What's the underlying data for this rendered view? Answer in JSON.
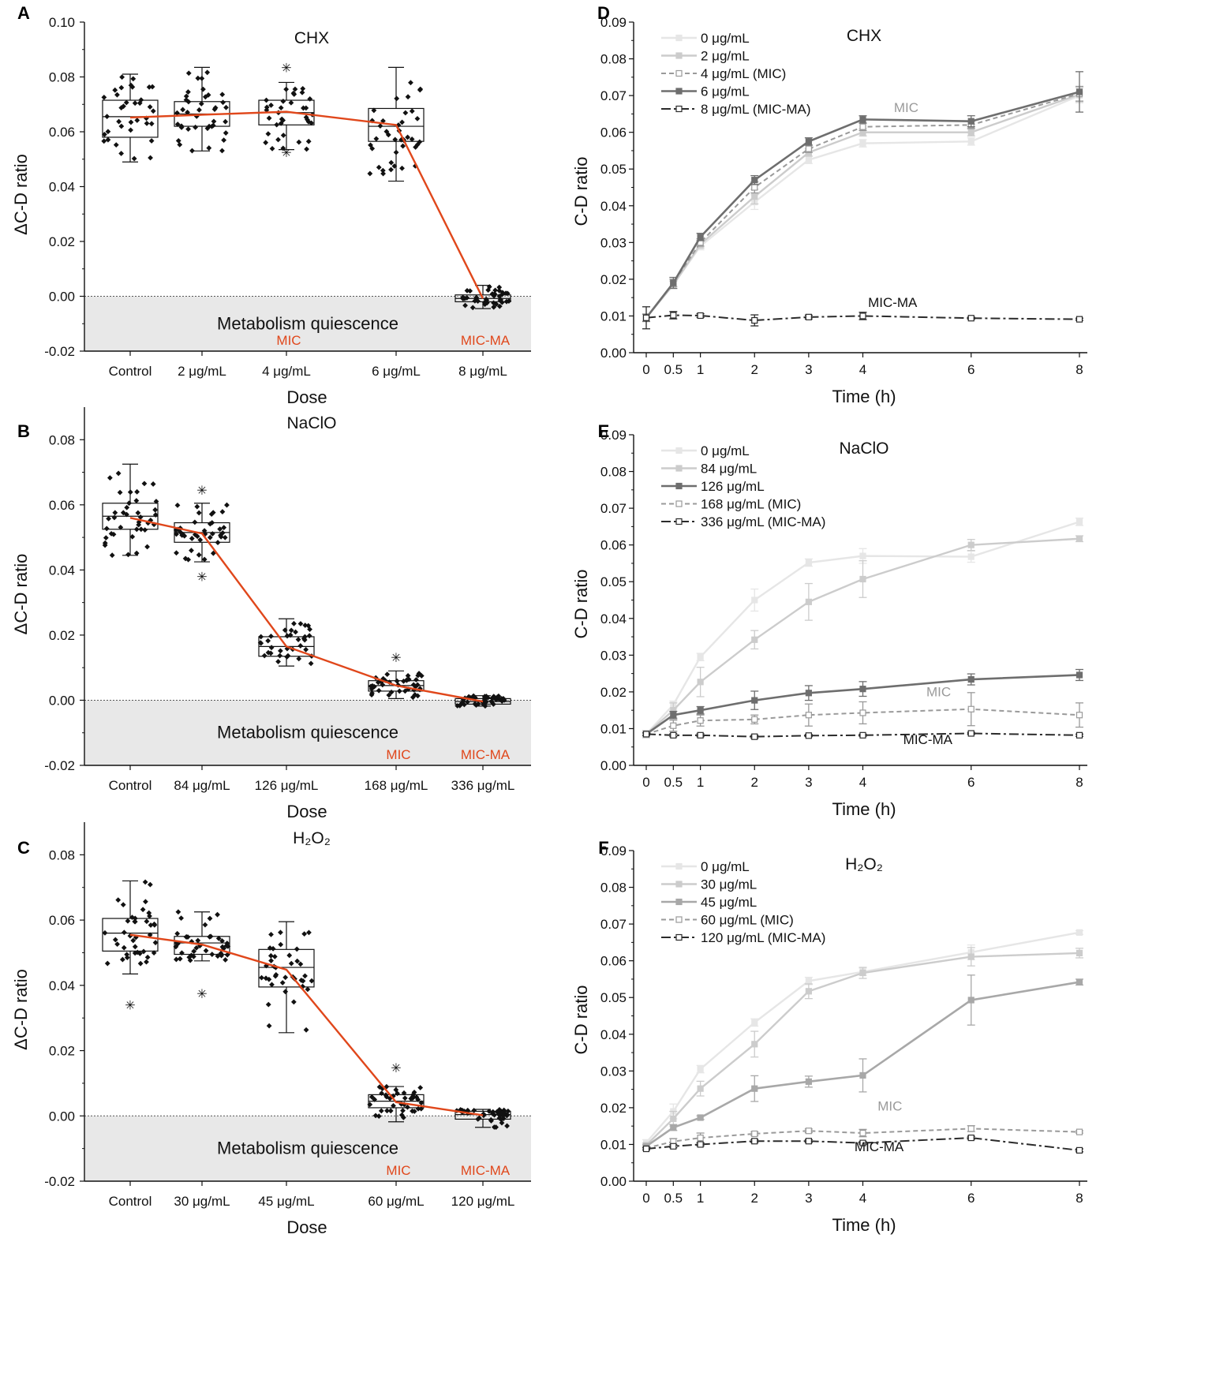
{
  "chart_data": [
    {
      "panel": "A",
      "type": "box",
      "title": "CHX",
      "xlabel": "Dose",
      "ylabel": "ΔC-D ratio",
      "ylim": [
        -0.02,
        0.1
      ],
      "yticks": [
        "-0.02",
        "0.00",
        "0.02",
        "0.04",
        "0.06",
        "0.08",
        "0.10"
      ],
      "categories": [
        "Control",
        "2 μg/mL",
        "4 μg/mL",
        "6 μg/mL",
        "8 μg/mL"
      ],
      "boxes": [
        {
          "q1": 0.058,
          "median": 0.0655,
          "q3": 0.0715,
          "min": 0.049,
          "max": 0.081,
          "mean": 0.0652,
          "n": 36,
          "outliers": []
        },
        {
          "q1": 0.062,
          "median": 0.0665,
          "q3": 0.071,
          "min": 0.053,
          "max": 0.0835,
          "mean": 0.0662,
          "n": 40,
          "outliers": []
        },
        {
          "q1": 0.0625,
          "median": 0.067,
          "q3": 0.0715,
          "min": 0.0535,
          "max": 0.078,
          "mean": 0.0673,
          "n": 36,
          "outliers": [
            0.0835,
            0.0525
          ]
        },
        {
          "q1": 0.0565,
          "median": 0.062,
          "q3": 0.0685,
          "min": 0.042,
          "max": 0.0835,
          "mean": 0.0625,
          "n": 40,
          "outliers": []
        },
        {
          "q1": -0.002,
          "median": -0.0008,
          "q3": 0.0005,
          "min": -0.0045,
          "max": 0.004,
          "mean": -0.0008,
          "n": 40,
          "outliers": []
        }
      ],
      "region_label": "Metabolism quiescence",
      "annotations": [
        {
          "label": "MIC",
          "category": 2
        },
        {
          "label": "MIC-MA",
          "category": 4
        }
      ]
    },
    {
      "panel": "B",
      "type": "box",
      "title": "NaClO",
      "xlabel": "Dose",
      "ylabel": "ΔC-D ratio",
      "ylim": [
        -0.02,
        0.09
      ],
      "yticks": [
        "-0.02",
        "0.00",
        "0.02",
        "0.04",
        "0.06",
        "0.08"
      ],
      "categories": [
        "Control",
        "84 μg/mL",
        "126 μg/mL",
        "168 μg/mL",
        "336 μg/mL"
      ],
      "boxes": [
        {
          "q1": 0.0525,
          "median": 0.0565,
          "q3": 0.0605,
          "min": 0.0445,
          "max": 0.0725,
          "mean": 0.056,
          "n": 40,
          "outliers": []
        },
        {
          "q1": 0.0485,
          "median": 0.0515,
          "q3": 0.0545,
          "min": 0.0425,
          "max": 0.0605,
          "mean": 0.0512,
          "n": 40,
          "outliers": [
            0.0645,
            0.038
          ]
        },
        {
          "q1": 0.0135,
          "median": 0.0165,
          "q3": 0.0195,
          "min": 0.0105,
          "max": 0.025,
          "mean": 0.0165,
          "n": 36,
          "outliers": []
        },
        {
          "q1": 0.0028,
          "median": 0.0045,
          "q3": 0.006,
          "min": 0.0005,
          "max": 0.009,
          "mean": 0.0045,
          "n": 40,
          "outliers": [
            0.0132
          ]
        },
        {
          "q1": -0.0012,
          "median": -0.0004,
          "q3": 0.0005,
          "min": -0.0018,
          "max": 0.0014,
          "mean": -0.0004,
          "n": 40,
          "outliers": []
        }
      ],
      "region_label": "Metabolism quiescence",
      "annotations": [
        {
          "label": "MIC",
          "category": 3
        },
        {
          "label": "MIC-MA",
          "category": 4
        }
      ]
    },
    {
      "panel": "C",
      "type": "box",
      "title": "H₂O₂",
      "xlabel": "Dose",
      "ylabel": "ΔC-D ratio",
      "ylim": [
        -0.02,
        0.09
      ],
      "yticks": [
        "-0.02",
        "0.00",
        "0.02",
        "0.04",
        "0.06",
        "0.08"
      ],
      "categories": [
        "Control",
        "30 μg/mL",
        "45 μg/mL",
        "60  μg/mL",
        "120  μg/mL"
      ],
      "boxes": [
        {
          "q1": 0.0505,
          "median": 0.056,
          "q3": 0.0605,
          "min": 0.0435,
          "max": 0.072,
          "mean": 0.0555,
          "n": 40,
          "outliers": [
            0.034
          ]
        },
        {
          "q1": 0.0495,
          "median": 0.053,
          "q3": 0.055,
          "min": 0.0475,
          "max": 0.0625,
          "mean": 0.0525,
          "n": 40,
          "outliers": [
            0.0375
          ]
        },
        {
          "q1": 0.0395,
          "median": 0.0455,
          "q3": 0.051,
          "min": 0.0255,
          "max": 0.0595,
          "mean": 0.0448,
          "n": 40,
          "outliers": []
        },
        {
          "q1": 0.0025,
          "median": 0.0045,
          "q3": 0.0065,
          "min": -0.0018,
          "max": 0.009,
          "mean": 0.0042,
          "n": 40,
          "outliers": [
            0.0148
          ]
        },
        {
          "q1": -0.001,
          "median": 0.0004,
          "q3": 0.0014,
          "min": -0.0035,
          "max": 0.002,
          "mean": 0.0002,
          "n": 40,
          "outliers": []
        }
      ],
      "region_label": "Metabolism quiescence",
      "annotations": [
        {
          "label": "MIC",
          "category": 3
        },
        {
          "label": "MIC-MA",
          "category": 4
        }
      ]
    },
    {
      "panel": "D",
      "type": "line",
      "title": "CHX",
      "xlabel": "Time (h)",
      "ylabel": "C-D ratio",
      "ylim": [
        0,
        0.09
      ],
      "yticks": [
        "0.00",
        "0.01",
        "0.02",
        "0.03",
        "0.04",
        "0.05",
        "0.06",
        "0.07",
        "0.08",
        "0.09"
      ],
      "x": [
        0,
        0.5,
        1,
        2,
        3,
        4,
        6,
        8
      ],
      "xticks": [
        "0",
        "0.5",
        "1",
        "2",
        "3",
        "4",
        "6",
        "8"
      ],
      "series": [
        {
          "name": "0 μg/mL",
          "style": "s1",
          "values": [
            0.0095,
            0.0185,
            0.029,
            0.041,
            0.0525,
            0.057,
            0.0575,
            0.07
          ],
          "err": [
            0.001,
            0.001,
            0.001,
            0.002,
            0.001,
            0.001,
            0.001,
            0.002
          ]
        },
        {
          "name": "2 μg/mL",
          "style": "s2",
          "values": [
            0.0095,
            0.0185,
            0.0295,
            0.0425,
            0.0545,
            0.06,
            0.06,
            0.0703
          ],
          "err": [
            0.001,
            0.001,
            0.001,
            0.002,
            0.001,
            0.001,
            0.001,
            0.002
          ]
        },
        {
          "name": "4 μg/mL (MIC)",
          "style": "s3",
          "values": [
            0.0095,
            0.019,
            0.03,
            0.045,
            0.0555,
            0.0615,
            0.062,
            0.0705
          ],
          "err": [
            0.001,
            0.001,
            0.001,
            0.0015,
            0.001,
            0.001,
            0.001,
            0.002
          ]
        },
        {
          "name": "6 μg/mL",
          "style": "s4",
          "values": [
            0.0095,
            0.019,
            0.0315,
            0.047,
            0.0575,
            0.0635,
            0.063,
            0.071
          ],
          "err": [
            0.001,
            0.0015,
            0.001,
            0.0012,
            0.001,
            0.001,
            0.0015,
            0.0055
          ]
        },
        {
          "name": "8 μg/mL (MIC-MA)",
          "style": "s5",
          "values": [
            0.0095,
            0.0102,
            0.0101,
            0.0088,
            0.0097,
            0.01,
            0.0094,
            0.0091
          ],
          "err": [
            0.003,
            0.001,
            0.0005,
            0.0015,
            0.0005,
            0.001,
            0.0003,
            0.0003
          ]
        }
      ],
      "labels": [
        {
          "text": "MIC",
          "x": 4.8,
          "y": 0.0655,
          "style": "s3"
        },
        {
          "text": "MIC-MA",
          "x": 4.55,
          "y": 0.0125,
          "style": "s5"
        }
      ]
    },
    {
      "panel": "E",
      "type": "line",
      "title": "NaClO",
      "xlabel": "Time (h)",
      "ylabel": "C-D ratio",
      "ylim": [
        0,
        0.09
      ],
      "yticks": [
        "0.00",
        "0.01",
        "0.02",
        "0.03",
        "0.04",
        "0.05",
        "0.06",
        "0.07",
        "0.08",
        "0.09"
      ],
      "x": [
        0,
        0.5,
        1,
        2,
        3,
        4,
        6,
        8
      ],
      "xticks": [
        "0",
        "0.5",
        "1",
        "2",
        "3",
        "4",
        "6",
        "8"
      ],
      "series": [
        {
          "name": "0 μg/mL",
          "style": "s1",
          "values": [
            0.0085,
            0.0165,
            0.0295,
            0.045,
            0.0552,
            0.057,
            0.0568,
            0.0663
          ],
          "err": [
            0.001,
            0.001,
            0.001,
            0.003,
            0.001,
            0.002,
            0.0015,
            0.001
          ]
        },
        {
          "name": "84 μg/mL",
          "style": "s2",
          "values": [
            0.0085,
            0.015,
            0.0227,
            0.0342,
            0.0445,
            0.0507,
            0.06,
            0.0617
          ],
          "err": [
            0.001,
            0.002,
            0.004,
            0.0025,
            0.005,
            0.005,
            0.0015,
            0.0008
          ]
        },
        {
          "name": "126 μg/mL",
          "style": "s4",
          "values": [
            0.0085,
            0.0137,
            0.015,
            0.0177,
            0.0197,
            0.0208,
            0.0234,
            0.0246
          ],
          "err": [
            0.0005,
            0.001,
            0.001,
            0.0025,
            0.002,
            0.002,
            0.0015,
            0.0015
          ]
        },
        {
          "name": "168 μg/mL (MIC)",
          "style": "s3",
          "values": [
            0.0085,
            0.0108,
            0.0122,
            0.0125,
            0.0137,
            0.0143,
            0.0153,
            0.0137
          ],
          "err": [
            0.0005,
            0.0015,
            0.0015,
            0.0012,
            0.003,
            0.003,
            0.0045,
            0.0033
          ]
        },
        {
          "name": "336 μg/mL (MIC-MA)",
          "style": "s5",
          "values": [
            0.0085,
            0.0082,
            0.0082,
            0.0078,
            0.0081,
            0.0082,
            0.0087,
            0.0082
          ],
          "err": [
            0.0003,
            0.0004,
            0.0004,
            0.0004,
            0.0003,
            0.0003,
            0.0003,
            0.0003
          ]
        }
      ],
      "labels": [
        {
          "text": "MIC",
          "x": 5.4,
          "y": 0.0188,
          "style": "s3"
        },
        {
          "text": "MIC-MA",
          "x": 5.2,
          "y": 0.0058,
          "style": "s5"
        }
      ]
    },
    {
      "panel": "F",
      "type": "line",
      "title": "H₂O₂",
      "xlabel": "Time (h)",
      "ylabel": "C-D ratio",
      "ylim": [
        0,
        0.09
      ],
      "yticks": [
        "0.00",
        "0.01",
        "0.02",
        "0.03",
        "0.04",
        "0.05",
        "0.06",
        "0.07",
        "0.08",
        "0.09"
      ],
      "x": [
        0,
        0.5,
        1,
        2,
        3,
        4,
        6,
        8
      ],
      "xticks": [
        "0",
        "0.5",
        "1",
        "2",
        "3",
        "4",
        "6",
        "8"
      ],
      "series": [
        {
          "name": "0 μg/mL",
          "style": "s1",
          "values": [
            0.0105,
            0.019,
            0.0305,
            0.0432,
            0.0545,
            0.057,
            0.0623,
            0.0677
          ],
          "err": [
            0.0008,
            0.002,
            0.001,
            0.001,
            0.001,
            0.001,
            0.002,
            0.0005
          ]
        },
        {
          "name": "30 μg/mL",
          "style": "s2",
          "values": [
            0.0098,
            0.017,
            0.0252,
            0.0373,
            0.0517,
            0.0567,
            0.0611,
            0.0621
          ],
          "err": [
            0.0006,
            0.002,
            0.002,
            0.0035,
            0.002,
            0.0015,
            0.0025,
            0.0013
          ]
        },
        {
          "name": "45 μg/mL",
          "style": "s4g",
          "values": [
            0.0095,
            0.0146,
            0.0173,
            0.0252,
            0.0271,
            0.0288,
            0.0493,
            0.0542
          ],
          "err": [
            0.0005,
            0.0008,
            0.0005,
            0.0035,
            0.0015,
            0.0045,
            0.0068,
            0.0008
          ]
        },
        {
          "name": "60 μg/mL (MIC)",
          "style": "s3",
          "values": [
            0.009,
            0.0108,
            0.0118,
            0.0129,
            0.0137,
            0.0131,
            0.0143,
            0.0134
          ],
          "err": [
            0.0005,
            0.0008,
            0.0013,
            0.0005,
            0.0005,
            0.001,
            0.0008,
            0.0003
          ]
        },
        {
          "name": "120 μg/mL (MIC-MA)",
          "style": "s5",
          "values": [
            0.0088,
            0.0095,
            0.01,
            0.0109,
            0.0109,
            0.0104,
            0.0118,
            0.0084
          ],
          "err": [
            0.0003,
            0.0004,
            0.0004,
            0.0004,
            0.0004,
            0.0004,
            0.0004,
            0.0004
          ]
        }
      ],
      "labels": [
        {
          "text": "MIC",
          "x": 4.5,
          "y": 0.0192,
          "style": "s3"
        },
        {
          "text": "MIC-MA",
          "x": 4.3,
          "y": 0.0082,
          "style": "s5"
        }
      ]
    }
  ]
}
